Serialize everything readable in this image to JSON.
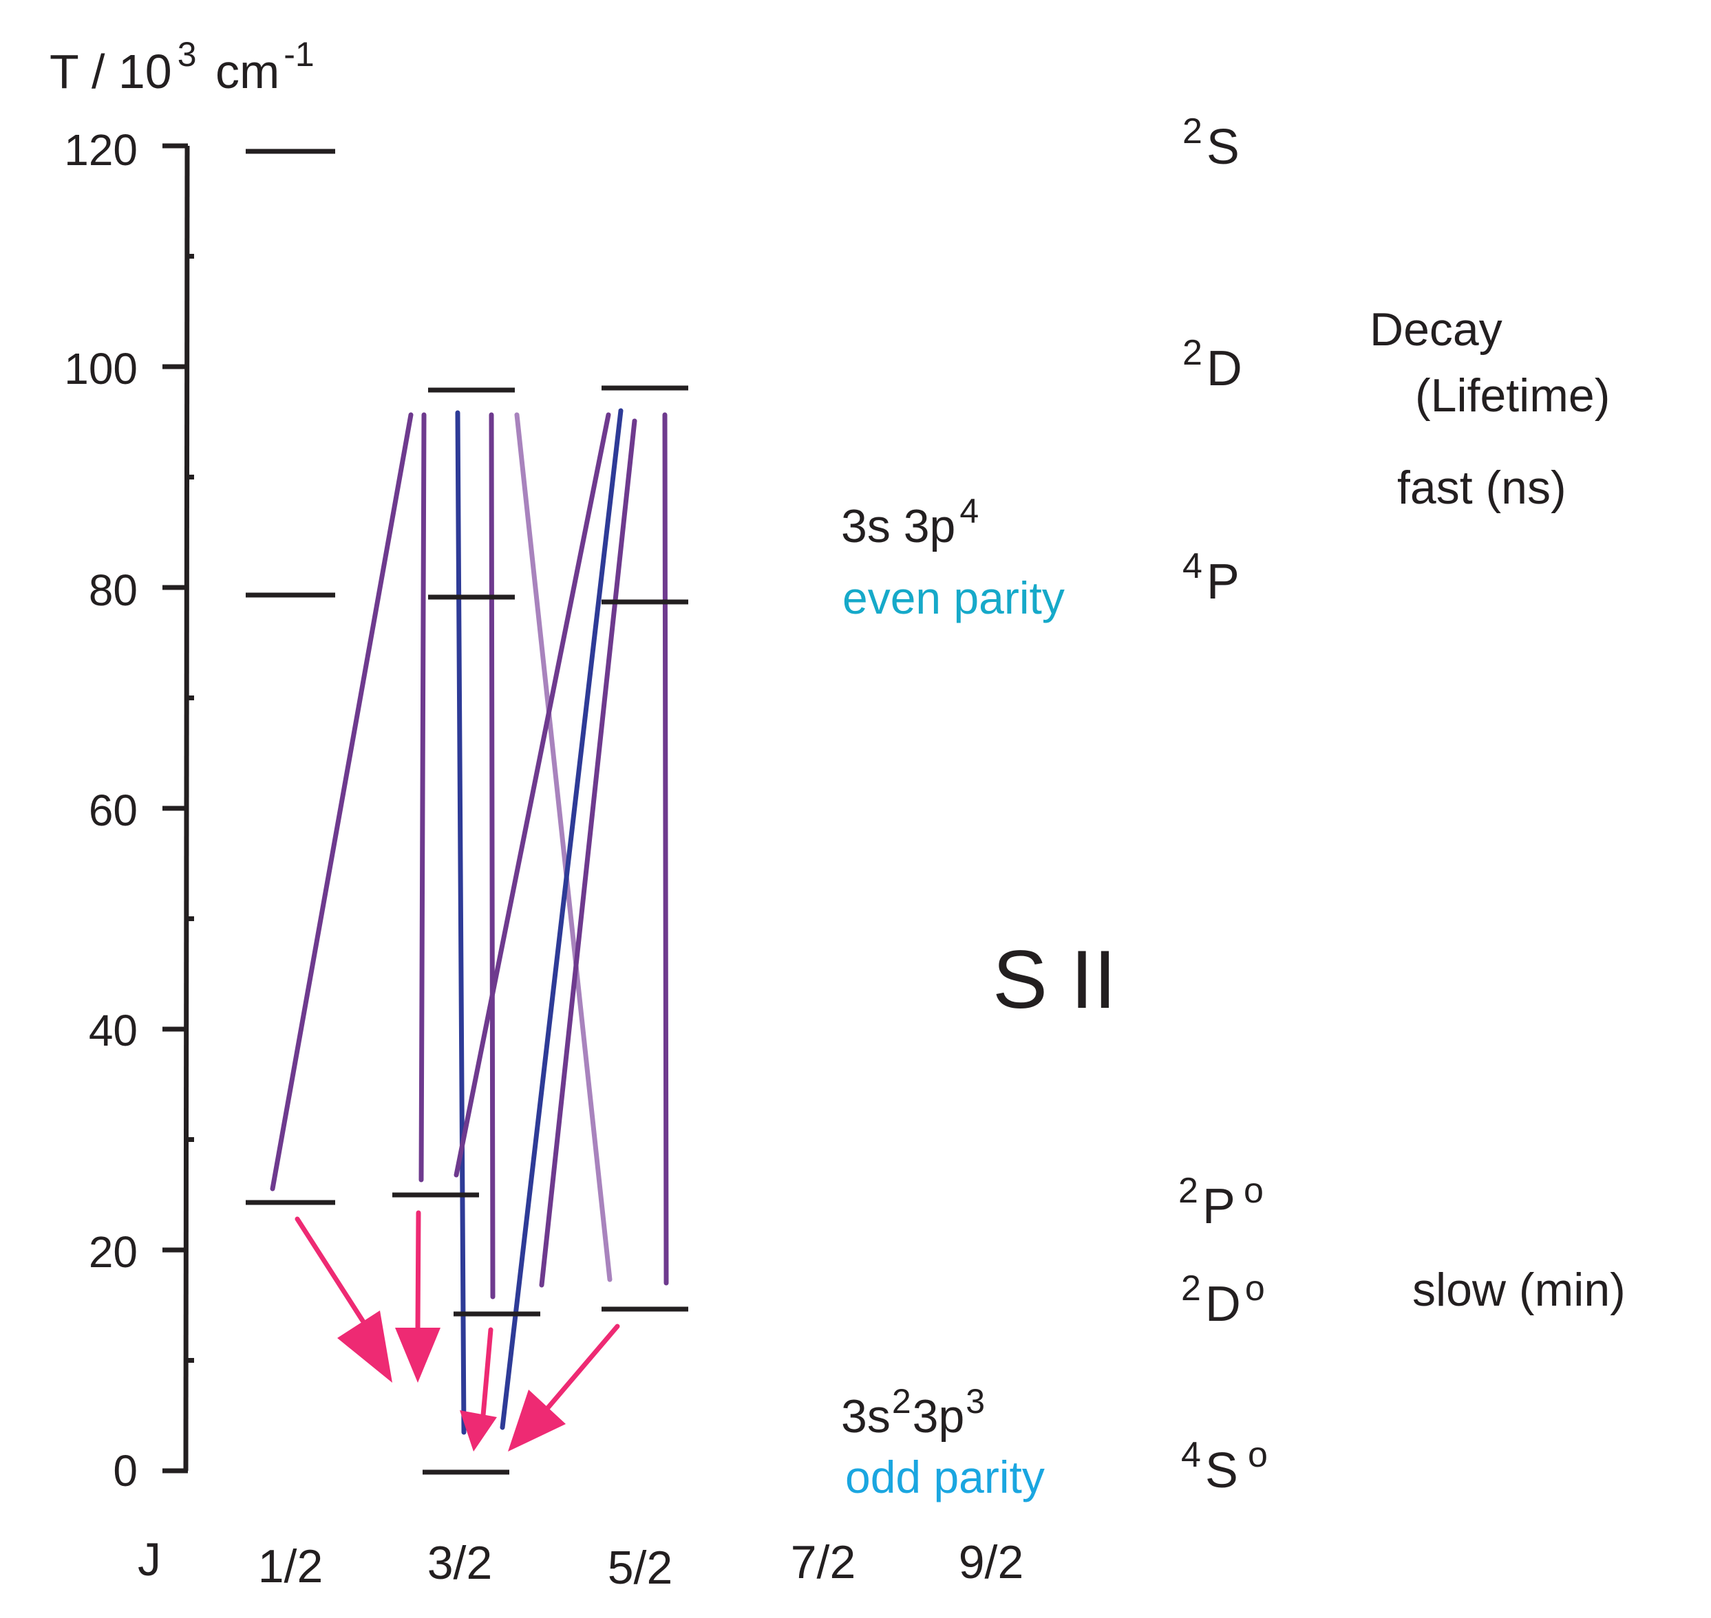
{
  "axis": {
    "title": {
      "base": "T / 10",
      "exponent": "3",
      "unit": " cm",
      "unit_exponent": "-1"
    },
    "ticks": [
      "0",
      "20",
      "40",
      "60",
      "80",
      "100",
      "120"
    ],
    "tick_values": [
      0,
      20,
      40,
      60,
      80,
      100,
      120
    ],
    "minor_tick_values": [
      10,
      30,
      50,
      70,
      90,
      110
    ],
    "range": [
      0,
      120
    ]
  },
  "j_axis": {
    "label": "J",
    "values": [
      "1/2",
      "3/2",
      "5/2",
      "7/2",
      "9/2"
    ]
  },
  "terms": [
    {
      "id": "2S",
      "sup": "2",
      "letter": "S",
      "post": "",
      "T": 120
    },
    {
      "id": "2D",
      "sup": "2",
      "letter": "D",
      "post": "",
      "T": 100
    },
    {
      "id": "4P",
      "sup": "4",
      "letter": "P",
      "post": "",
      "T": 80
    },
    {
      "id": "2Po",
      "sup": "2",
      "letter": "P",
      "post": "o",
      "T": 25
    },
    {
      "id": "2Do",
      "sup": "2",
      "letter": "D",
      "post": "o",
      "T": 16
    },
    {
      "id": "4So",
      "sup": "4",
      "letter": "S",
      "post": "o",
      "T": 0
    }
  ],
  "config_even": {
    "label": "3s 3p",
    "exponent": "4",
    "parity": "even parity",
    "parity_color": "#16a9c9"
  },
  "config_odd": {
    "label_a": "3s",
    "exp_a": "2",
    "label_b": "3p",
    "exp_b": "3",
    "parity": "odd parity",
    "parity_color": "#1aa6e0"
  },
  "ion": "S II",
  "decay": {
    "title": "Decay",
    "subtitle": "(Lifetime)",
    "fast": "fast (ns)",
    "slow": "slow (min)"
  },
  "levels": [
    {
      "term": "2S",
      "J": "1/2",
      "T": 119.8
    },
    {
      "term": "4P",
      "J": "1/2",
      "T": 79.2
    },
    {
      "term": "2Po",
      "J": "1/2",
      "T": 24.6
    },
    {
      "term": "2D",
      "J": "3/2",
      "T": 98.1
    },
    {
      "term": "4P",
      "J": "3/2",
      "T": 79.0
    },
    {
      "term": "2Po",
      "J": "3/2",
      "T": 25.2
    },
    {
      "term": "2Do",
      "J": "3/2",
      "T": 14.6
    },
    {
      "term": "4So",
      "J": "3/2",
      "T": 0
    },
    {
      "term": "2D",
      "J": "5/2",
      "T": 98.3
    },
    {
      "term": "4P",
      "J": "5/2",
      "T": 78.8
    },
    {
      "term": "2Do",
      "J": "5/2",
      "T": 14.8
    }
  ],
  "transitions": [
    {
      "from_T": 96.0,
      "to_T": 25.8,
      "color": "#6e3a8e"
    },
    {
      "from_T": 96.0,
      "to_T": 26.6,
      "color": "#6e3a8e"
    },
    {
      "from_T": 96.0,
      "to_T": 3.3,
      "color": "#2e3b97"
    },
    {
      "from_T": 96.0,
      "to_T": 15.6,
      "color": "#6e3a8e"
    },
    {
      "from_T": 96.0,
      "to_T": 17.0,
      "color": "#a883bd"
    },
    {
      "from_T": 96.0,
      "to_T": 27.0,
      "color": "#6e3a8e"
    },
    {
      "from_T": 96.0,
      "to_T": 3.8,
      "color": "#2e3b97"
    },
    {
      "from_T": 95.4,
      "to_T": 16.6,
      "color": "#6e3a8e"
    },
    {
      "from_T": 96.0,
      "to_T": 16.8,
      "color": "#6e3a8e"
    }
  ],
  "forbidden_transitions": [
    {
      "from_T": 23.6,
      "to_T": 7.8,
      "color": "#ee2a73"
    },
    {
      "from_T": 24.0,
      "to_T": 7.8,
      "color": "#ee2a73"
    },
    {
      "from_T": 13.2,
      "to_T": 1.8,
      "color": "#ee2a73"
    },
    {
      "from_T": 13.6,
      "to_T": 2.2,
      "color": "#ee2a73"
    }
  ]
}
